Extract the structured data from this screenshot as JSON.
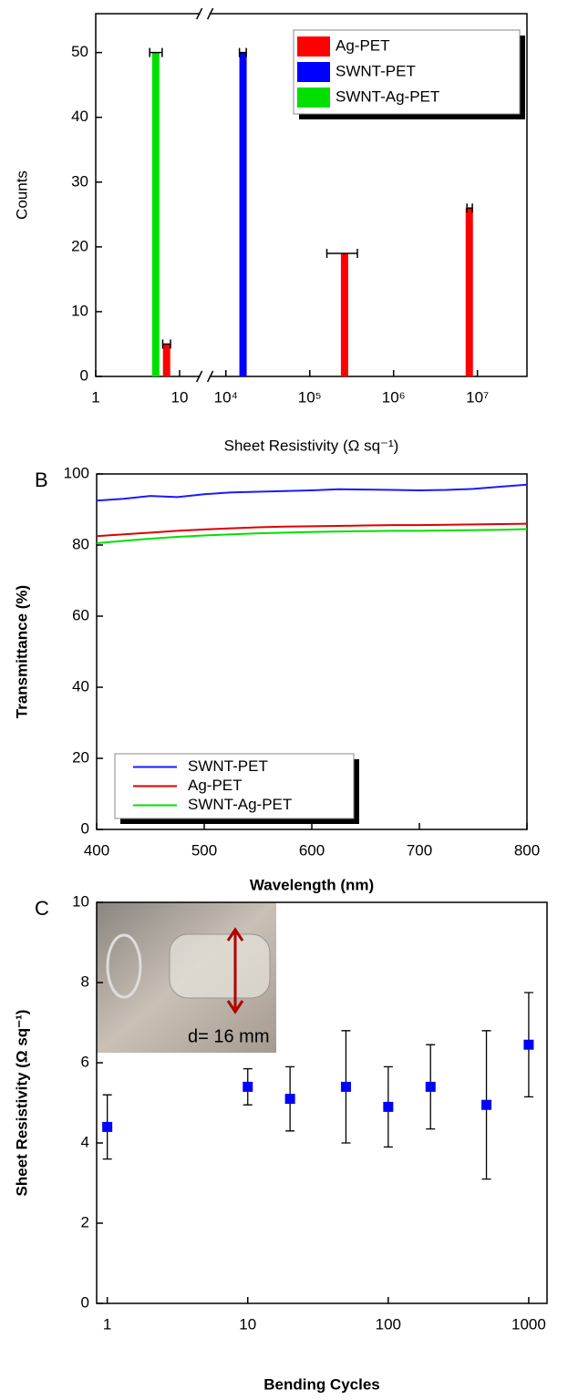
{
  "chart_data": [
    {
      "type": "bar",
      "xlabel": "Sheet Resistivity (Ω sq⁻¹)",
      "ylabel": "Counts",
      "xlog": true,
      "xlim": [
        1,
        39000000
      ],
      "xbreak": [
        20,
        5600
      ],
      "xticks": [
        1,
        10,
        {
          "value": 10000,
          "label": "10⁴"
        },
        {
          "value": 100000,
          "label": "10⁵"
        },
        {
          "value": 1000000,
          "label": "10⁶"
        },
        {
          "value": 10000000,
          "label": "10⁷"
        }
      ],
      "ylim": [
        0,
        56
      ],
      "yticks": [
        0,
        10,
        20,
        30,
        40,
        50
      ],
      "legend": "upper right",
      "series": [
        {
          "name": "Ag-PET",
          "color": "#ff0000",
          "x": [
            7,
            260000,
            8000000
          ],
          "values": [
            5,
            19,
            26
          ],
          "x_low": [
            6.3,
            160000,
            7500000
          ],
          "x_high": [
            7.8,
            370000,
            8700000
          ]
        },
        {
          "name": "SWNT-PET",
          "color": "#0000ff",
          "x": [
            16000
          ],
          "values": [
            50
          ],
          "x_low": [
            14500
          ],
          "x_high": [
            17500
          ]
        },
        {
          "name": "SWNT-Ag-PET",
          "color": "#00e000",
          "x": [
            5.2
          ],
          "values": [
            50
          ],
          "x_low": [
            4.4
          ],
          "x_high": [
            6.2
          ]
        }
      ]
    },
    {
      "type": "line",
      "panel_label": "B",
      "xlabel": "Wavelength (nm)",
      "ylabel": "Transmittance (%)",
      "x": [
        400,
        425,
        450,
        475,
        500,
        525,
        550,
        575,
        600,
        625,
        650,
        675,
        700,
        725,
        750,
        775,
        800
      ],
      "xlim": [
        400,
        800
      ],
      "xticks": [
        400,
        500,
        600,
        700,
        800
      ],
      "ylim": [
        0,
        100
      ],
      "yticks": [
        0,
        20,
        40,
        60,
        80,
        100
      ],
      "legend": "lower left",
      "series": [
        {
          "name": "SWNT-PET",
          "color": "#1a1aff",
          "values": [
            92.5,
            93,
            93.8,
            93.5,
            94.3,
            94.8,
            95,
            95.2,
            95.4,
            95.7,
            95.6,
            95.5,
            95.4,
            95.5,
            95.8,
            96.4,
            97
          ]
        },
        {
          "name": "Ag-PET",
          "color": "#e00000",
          "values": [
            82.5,
            83,
            83.5,
            84,
            84.4,
            84.7,
            85,
            85.2,
            85.3,
            85.4,
            85.5,
            85.6,
            85.6,
            85.7,
            85.8,
            85.9,
            86
          ]
        },
        {
          "name": "SWNT-Ag-PET",
          "color": "#00e000",
          "values": [
            80.5,
            81.2,
            81.8,
            82.3,
            82.7,
            83,
            83.3,
            83.5,
            83.7,
            83.8,
            83.9,
            84,
            84,
            84.1,
            84.2,
            84.3,
            84.5
          ]
        }
      ]
    },
    {
      "type": "scatter",
      "panel_label": "C",
      "annotation": "d= 16 mm",
      "xlabel": "Bending Cycles",
      "ylabel": "Sheet Resistivity (Ω sq⁻¹)",
      "xlog": true,
      "xlim": [
        0.84,
        1350
      ],
      "xticks": [
        1,
        10,
        100,
        1000
      ],
      "ylim": [
        0,
        10
      ],
      "yticks": [
        0,
        2,
        4,
        6,
        8,
        10
      ],
      "series": [
        {
          "color": "#0000ff",
          "x": [
            1,
            10,
            20,
            50,
            100,
            200,
            500,
            1000
          ],
          "values": [
            4.4,
            5.4,
            5.1,
            5.4,
            4.9,
            5.4,
            4.95,
            6.45
          ],
          "errors": [
            0.8,
            0.45,
            0.8,
            1.4,
            1.0,
            1.05,
            1.85,
            1.3
          ]
        }
      ]
    }
  ]
}
